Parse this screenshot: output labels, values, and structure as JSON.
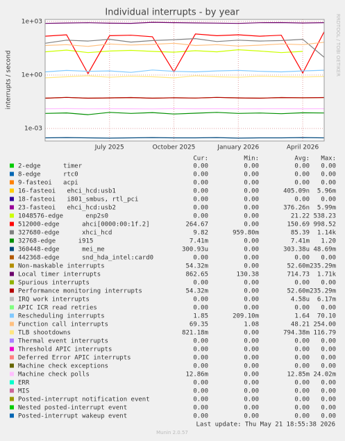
{
  "chart_data": {
    "type": "line",
    "title": "Individual interrupts - by year",
    "y_label": "interrupts / second",
    "side_label": "RRDTOOL / TOBI OETIKER",
    "log_scale": true,
    "grid": true,
    "ylim": [
      0.0002,
      1300
    ],
    "yticks": [
      {
        "value": 1000,
        "label": "1e+03"
      },
      {
        "value": 1,
        "label": "1e+00"
      },
      {
        "value": 0.001,
        "label": "1e-03"
      }
    ],
    "xlim": [
      "2025-04",
      "2026-05"
    ],
    "xticks": [
      {
        "value": "2025-07",
        "label": "July 2025"
      },
      {
        "value": "2025-10",
        "label": "October 2025"
      },
      {
        "value": "2026-01",
        "label": "January 2026"
      },
      {
        "value": "2026-04",
        "label": "April 2026"
      }
    ],
    "x": [
      "2025-04",
      "2025-05",
      "2025-06",
      "2025-07",
      "2025-08",
      "2025-09",
      "2025-10",
      "2025-11",
      "2025-12",
      "2026-01",
      "2026-02",
      "2026-03",
      "2026-04",
      "2026-05"
    ],
    "legend_columns": [
      "Cur:",
      "Min:",
      "Avg:",
      "Max:"
    ],
    "series": [
      {
        "name": "2-edge      timer",
        "color": "#00cc00",
        "cur": "0.00",
        "min": "0.00",
        "avg": "0.00",
        "max": "0.00",
        "values": [
          0,
          0,
          0,
          0,
          0,
          0,
          0,
          0,
          0,
          0,
          0,
          0,
          0,
          0
        ]
      },
      {
        "name": "8-edge      rtc0",
        "color": "#0066b3",
        "cur": "0.00",
        "min": "0.00",
        "avg": "0.00",
        "max": "0.00",
        "values": [
          0,
          0,
          0,
          0,
          0,
          0,
          0,
          0,
          0,
          0,
          0,
          0,
          0,
          0
        ]
      },
      {
        "name": "9-fasteoi   acpi",
        "color": "#ff8000",
        "cur": "0.00",
        "min": "0.00",
        "avg": "0.00",
        "max": "0.00",
        "values": [
          0,
          0,
          0,
          0,
          0,
          0,
          0,
          0,
          0,
          0,
          0,
          0,
          0,
          0
        ]
      },
      {
        "name": "16-fasteoi   ehci_hcd:usb1",
        "color": "#ffcc00",
        "cur": "0.00",
        "min": "0.00",
        "avg": "405.09n",
        "max": "5.96m",
        "values": [
          0,
          0,
          0,
          0,
          0,
          0,
          0,
          0,
          0,
          0,
          0,
          0,
          0,
          0
        ]
      },
      {
        "name": "18-fasteoi   i801_smbus, rtl_pci",
        "color": "#330099",
        "cur": "0.00",
        "min": "0.00",
        "avg": "0.00",
        "max": "0.00",
        "values": [
          0,
          0,
          0,
          0,
          0,
          0,
          0,
          0,
          0,
          0,
          0,
          0,
          0,
          0
        ]
      },
      {
        "name": "23-fasteoi   ehci_hcd:usb2",
        "color": "#990099",
        "cur": "0.00",
        "min": "0.00",
        "avg": "376.26n",
        "max": "5.99m",
        "values": [
          0,
          0,
          0,
          0,
          0,
          0,
          0,
          0,
          0,
          0,
          0,
          0,
          0,
          0
        ]
      },
      {
        "name": "1048576-edge      enp2s0",
        "color": "#ccff00",
        "cur": "0.00",
        "min": "0.00",
        "avg": "21.22",
        "max": "538.23",
        "values": [
          20,
          25,
          18,
          22,
          24,
          21,
          19,
          23,
          20,
          26,
          22,
          18,
          21,
          0
        ]
      },
      {
        "name": "512000-edge      ahci[0000:00:1f.2]",
        "color": "#ff0000",
        "cur": "264.67",
        "min": "0.00",
        "avg": "150.69",
        "max": "998.52",
        "values": [
          150,
          180,
          1.2,
          160,
          170,
          140,
          1.5,
          200,
          160,
          180,
          150,
          170,
          1.3,
          265
        ]
      },
      {
        "name": "327680-edge      xhci_hcd",
        "color": "#808080",
        "cur": "9.82",
        "min": "959.80m",
        "avg": "85.39",
        "max": "1.14k",
        "values": [
          60,
          90,
          80,
          100,
          70,
          85,
          95,
          110,
          75,
          90,
          80,
          85,
          100,
          9.8
        ]
      },
      {
        "name": "32768-edge      i915",
        "color": "#008f00",
        "cur": "7.41m",
        "min": "0.00",
        "avg": "7.41m",
        "max": "1.20",
        "values": [
          0.007,
          0.0075,
          0.006,
          0.008,
          0.007,
          0.0078,
          0.0065,
          0.0072,
          0.008,
          0.007,
          0.0074,
          0.0068,
          0.0076,
          0.0074
        ]
      },
      {
        "name": "360448-edge      mei_me",
        "color": "#00487d",
        "cur": "300.93u",
        "min": "0.00",
        "avg": "303.38u",
        "max": "48.69m",
        "values": [
          0.0003,
          0.00031,
          0.0003,
          0.00029,
          0.0003,
          0.00031,
          0.0003,
          0.0003,
          0.00031,
          0.00029,
          0.0003,
          0.0003,
          0.00031,
          0.0003
        ]
      },
      {
        "name": "442368-edge      snd_hda_intel:card0",
        "color": "#b35a00",
        "cur": "0.00",
        "min": "0.00",
        "avg": "0.00",
        "max": "0.00",
        "values": [
          0,
          0,
          0,
          0,
          0,
          0,
          0,
          0,
          0,
          0,
          0,
          0,
          0,
          0
        ]
      },
      {
        "name": "Non-maskable interrupts",
        "color": "#b38f00",
        "cur": "54.32m",
        "min": "0.00",
        "avg": "52.60m",
        "max": "235.29m",
        "values": [
          0.05,
          0.055,
          0.05,
          0.052,
          0.054,
          0.05,
          0.053,
          0.051,
          0.055,
          0.052,
          0.05,
          0.054,
          0.053,
          0.054
        ]
      },
      {
        "name": "Local timer interrupts",
        "color": "#6b006b",
        "cur": "862.65",
        "min": "130.38",
        "avg": "714.73",
        "max": "1.71k",
        "values": [
          780,
          820,
          850,
          800,
          790,
          900,
          860,
          830,
          810,
          780,
          850,
          870,
          820,
          860
        ]
      },
      {
        "name": "Spurious interrupts",
        "color": "#8fb300",
        "cur": "0.00",
        "min": "0.00",
        "avg": "0.00",
        "max": "0.00",
        "values": [
          0,
          0,
          0,
          0,
          0,
          0,
          0,
          0,
          0,
          0,
          0,
          0,
          0,
          0
        ]
      },
      {
        "name": "Performance monitoring interrupts",
        "color": "#b30000",
        "cur": "54.32m",
        "min": "0.00",
        "avg": "52.60m",
        "max": "235.29m",
        "values": [
          0.05,
          0.055,
          0.05,
          0.052,
          0.054,
          0.05,
          0.053,
          0.051,
          0.055,
          0.052,
          0.05,
          0.054,
          0.053,
          0.054
        ]
      },
      {
        "name": "IRQ work interrupts",
        "color": "#bebebe",
        "cur": "0.00",
        "min": "0.00",
        "avg": "4.58u",
        "max": "6.17m",
        "values": [
          0,
          0,
          0,
          0,
          0,
          0,
          0,
          0,
          0,
          0,
          0,
          0,
          0,
          0
        ]
      },
      {
        "name": "APIC ICR read retries",
        "color": "#80ff80",
        "cur": "0.00",
        "min": "0.00",
        "avg": "0.00",
        "max": "0.00",
        "values": [
          0,
          0,
          0,
          0,
          0,
          0,
          0,
          0,
          0,
          0,
          0,
          0,
          0,
          0
        ]
      },
      {
        "name": "Rescheduling interrupts",
        "color": "#80c9ff",
        "cur": "1.85",
        "min": "209.10m",
        "avg": "1.64",
        "max": "70.10",
        "values": [
          1.5,
          1.8,
          1.6,
          1.7,
          1.4,
          1.9,
          1.6,
          1.5,
          1.7,
          1.8,
          1.6,
          1.5,
          1.7,
          1.85
        ]
      },
      {
        "name": "Function call interrupts",
        "color": "#ffc080",
        "cur": "69.35",
        "min": "1.08",
        "avg": "48.21",
        "max": "254.00",
        "values": [
          45,
          50,
          40,
          55,
          48,
          52,
          60,
          45,
          50,
          42,
          47,
          55,
          50,
          69
        ]
      },
      {
        "name": "TLB shootdowns",
        "color": "#ffe680",
        "cur": "821.18m",
        "min": "0.00",
        "avg": "794.38m",
        "max": "116.79",
        "values": [
          0.7,
          0.8,
          0.9,
          0.75,
          0.85,
          0.8,
          0.7,
          0.9,
          0.8,
          0.75,
          0.85,
          0.8,
          0.78,
          0.82
        ]
      },
      {
        "name": "Thermal event interrupts",
        "color": "#aa80ff",
        "cur": "0.00",
        "min": "0.00",
        "avg": "0.00",
        "max": "0.00",
        "values": [
          0,
          0,
          0,
          0,
          0,
          0,
          0,
          0,
          0,
          0,
          0,
          0,
          0,
          0
        ]
      },
      {
        "name": "Threshold APIC interrupts",
        "color": "#ee00cc",
        "cur": "0.00",
        "min": "0.00",
        "avg": "0.00",
        "max": "0.00",
        "values": [
          0,
          0,
          0,
          0,
          0,
          0,
          0,
          0,
          0,
          0,
          0,
          0,
          0,
          0
        ]
      },
      {
        "name": "Deferred Error APIC interrupts",
        "color": "#ff8080",
        "cur": "0.00",
        "min": "0.00",
        "avg": "0.00",
        "max": "0.00",
        "values": [
          0,
          0,
          0,
          0,
          0,
          0,
          0,
          0,
          0,
          0,
          0,
          0,
          0,
          0
        ]
      },
      {
        "name": "Machine check exceptions",
        "color": "#666600",
        "cur": "0.00",
        "min": "0.00",
        "avg": "0.00",
        "max": "0.00",
        "values": [
          0,
          0,
          0,
          0,
          0,
          0,
          0,
          0,
          0,
          0,
          0,
          0,
          0,
          0
        ]
      },
      {
        "name": "Machine check polls",
        "color": "#ffbfff",
        "cur": "12.86m",
        "min": "0.00",
        "avg": "12.85m",
        "max": "24.02m",
        "values": [
          0.0128,
          0.013,
          0.0127,
          0.0129,
          0.0128,
          0.0126,
          0.013,
          0.0128,
          0.0129,
          0.0127,
          0.0128,
          0.0129,
          0.0128,
          0.0129
        ]
      },
      {
        "name": "ERR",
        "color": "#00ffcc",
        "cur": "0.00",
        "min": "0.00",
        "avg": "0.00",
        "max": "0.00",
        "values": [
          0,
          0,
          0,
          0,
          0,
          0,
          0,
          0,
          0,
          0,
          0,
          0,
          0,
          0
        ]
      },
      {
        "name": "MIS",
        "color": "#cc6699",
        "cur": "0.00",
        "min": "0.00",
        "avg": "0.00",
        "max": "0.00",
        "values": [
          0,
          0,
          0,
          0,
          0,
          0,
          0,
          0,
          0,
          0,
          0,
          0,
          0,
          0
        ]
      },
      {
        "name": "Posted-interrupt notification event",
        "color": "#999900",
        "cur": "0.00",
        "min": "0.00",
        "avg": "0.00",
        "max": "0.00",
        "values": [
          0,
          0,
          0,
          0,
          0,
          0,
          0,
          0,
          0,
          0,
          0,
          0,
          0,
          0
        ]
      },
      {
        "name": "Nested posted-interrupt event",
        "color": "#00cc00",
        "cur": "0.00",
        "min": "0.00",
        "avg": "0.00",
        "max": "0.00",
        "values": [
          0,
          0,
          0,
          0,
          0,
          0,
          0,
          0,
          0,
          0,
          0,
          0,
          0,
          0
        ]
      },
      {
        "name": "Posted-interrupt wakeup event",
        "color": "#0066b3",
        "cur": "0.00",
        "min": "0.00",
        "avg": "0.00",
        "max": "0.00",
        "values": [
          0,
          0,
          0,
          0,
          0,
          0,
          0,
          0,
          0,
          0,
          0,
          0,
          0,
          0
        ]
      }
    ],
    "footer": "Last update: Thu May 21 18:55:38 2026",
    "version": "Munin 2.0.57"
  }
}
